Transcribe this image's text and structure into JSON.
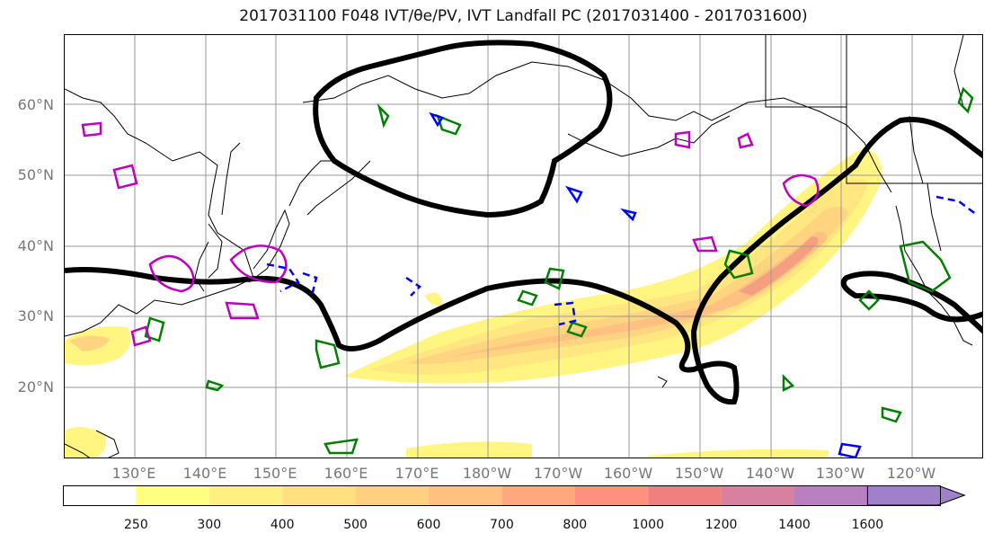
{
  "title": "2017031100 F048 IVT/θe/PV, IVT Landfall PC (2017031400 - 2017031600)",
  "lat_labels": [
    "60°N",
    "50°N",
    "40°N",
    "30°N",
    "20°N"
  ],
  "lon_labels": [
    "130°E",
    "140°E",
    "150°E",
    "160°E",
    "170°E",
    "180°W",
    "170°W",
    "160°W",
    "150°W",
    "140°W",
    "130°W",
    "120°W"
  ],
  "colorbar": {
    "ticks": [
      "250",
      "300",
      "400",
      "500",
      "600",
      "700",
      "800",
      "1000",
      "1200",
      "1400",
      "1600"
    ],
    "colors": [
      "#ffffff",
      "#ffff80",
      "#fff080",
      "#ffe080",
      "#ffd080",
      "#ffc080",
      "#ffa880",
      "#ff9080",
      "#f08080",
      "#d880a0",
      "#b880c0",
      "#a080c8"
    ]
  },
  "contour_colors": {
    "pc": "#000000",
    "theta_e": "#008000",
    "pv_pos": "#c000c0",
    "pv_neg": "#0000ff"
  }
}
